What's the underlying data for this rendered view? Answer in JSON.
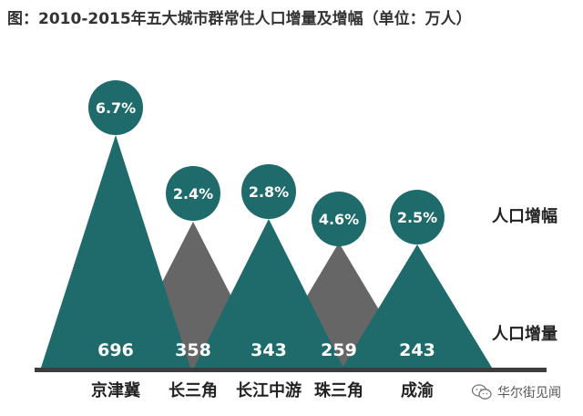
{
  "title": "图：2010-2015年五大城市群常住人口增量及增幅（单位：万人）",
  "legend": {
    "rate_label": "人口增幅",
    "increase_label": "人口增量"
  },
  "watermark": "华尔街见闻",
  "colors": {
    "teal": "#1f6b6b",
    "gray": "#666666",
    "baseline": "#3d3d3d",
    "text_dark": "#222222",
    "value_text": "#ffffff"
  },
  "chart_data": {
    "type": "bar",
    "title": "图：2010-2015年五大城市群常住人口增量及增幅（单位：万人）",
    "categories": [
      "京津冀",
      "长三角",
      "长江中游",
      "珠三角",
      "成渝"
    ],
    "series": [
      {
        "name": "人口增量",
        "values": [
          696,
          358,
          343,
          259,
          243
        ]
      },
      {
        "name": "人口增幅",
        "values": [
          "6.7%",
          "2.4%",
          "2.8%",
          "4.6%",
          "2.5%"
        ]
      }
    ],
    "rates_numeric": [
      6.7,
      2.4,
      2.8,
      4.6,
      2.5
    ],
    "bar_colors": [
      "teal",
      "gray",
      "teal",
      "gray",
      "teal"
    ],
    "circle_colors": [
      "teal",
      "teal",
      "teal",
      "teal",
      "teal"
    ],
    "grid": false
  }
}
